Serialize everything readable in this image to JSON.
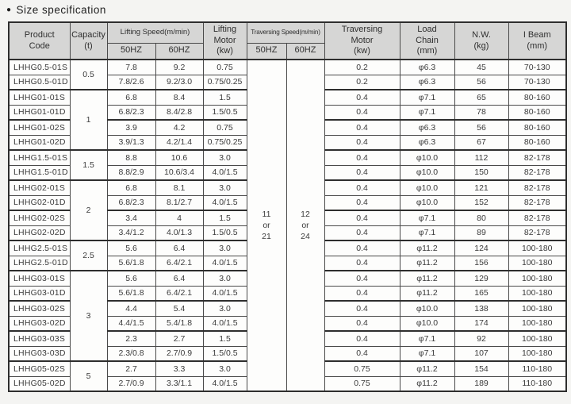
{
  "title": "Size specification",
  "bullet": "●",
  "table": {
    "headers": {
      "product_code": "Product\nCode",
      "capacity": "Capacity\n(t)",
      "lifting_speed": "Lifting Speed(m/min)",
      "lifting_speed_50hz": "50HZ",
      "lifting_speed_60hz": "60HZ",
      "lifting_motor": "Lifting\nMotor\n(kw)",
      "traversing_speed": "Traversing Speed(m/min)",
      "traversing_speed_50hz": "50HZ",
      "traversing_speed_60hz": "60HZ",
      "traversing_motor": "Traversing\nMotor\n(kw)",
      "load_chain": "Load\nChain\n(mm)",
      "nw": "N.W.\n(kg)",
      "i_beam": "I Beam\n(mm)"
    },
    "capacity_groups": [
      {
        "label": "0.5",
        "span": 2
      },
      {
        "label": "1",
        "span": 4
      },
      {
        "label": "1.5",
        "span": 2
      },
      {
        "label": "2",
        "span": 4
      },
      {
        "label": "2.5",
        "span": 2
      },
      {
        "label": "3",
        "span": 6
      },
      {
        "label": "5",
        "span": 2
      }
    ],
    "traversing_speed_values": {
      "hz50": "11\nor\n21",
      "hz60": "12\nor\n24"
    },
    "rows": [
      {
        "code": "LHHG0.5-01S",
        "lift_50hz": "7.8",
        "lift_60hz": "9.2",
        "lifting_motor_kw": "0.75",
        "traversing_motor_kw": "0.2",
        "load_chain_mm": "φ6.3",
        "nw_kg": "45",
        "i_beam_mm": "70-130"
      },
      {
        "code": "LHHG0.5-01D",
        "lift_50hz": "7.8/2.6",
        "lift_60hz": "9.2/3.0",
        "lifting_motor_kw": "0.75/0.25",
        "traversing_motor_kw": "0.2",
        "load_chain_mm": "φ6.3",
        "nw_kg": "56",
        "i_beam_mm": "70-130"
      },
      {
        "code": "LHHG01-01S",
        "lift_50hz": "6.8",
        "lift_60hz": "8.4",
        "lifting_motor_kw": "1.5",
        "traversing_motor_kw": "0.4",
        "load_chain_mm": "φ7.1",
        "nw_kg": "65",
        "i_beam_mm": "80-160"
      },
      {
        "code": "LHHG01-01D",
        "lift_50hz": "6.8/2.3",
        "lift_60hz": "8.4/2.8",
        "lifting_motor_kw": "1.5/0.5",
        "traversing_motor_kw": "0.4",
        "load_chain_mm": "φ7.1",
        "nw_kg": "78",
        "i_beam_mm": "80-160"
      },
      {
        "code": "LHHG01-02S",
        "lift_50hz": "3.9",
        "lift_60hz": "4.2",
        "lifting_motor_kw": "0.75",
        "traversing_motor_kw": "0.4",
        "load_chain_mm": "φ6.3",
        "nw_kg": "56",
        "i_beam_mm": "80-160"
      },
      {
        "code": "LHHG01-02D",
        "lift_50hz": "3.9/1.3",
        "lift_60hz": "4.2/1.4",
        "lifting_motor_kw": "0.75/0.25",
        "traversing_motor_kw": "0.4",
        "load_chain_mm": "φ6.3",
        "nw_kg": "67",
        "i_beam_mm": "80-160"
      },
      {
        "code": "LHHG1.5-01S",
        "lift_50hz": "8.8",
        "lift_60hz": "10.6",
        "lifting_motor_kw": "3.0",
        "traversing_motor_kw": "0.4",
        "load_chain_mm": "φ10.0",
        "nw_kg": "112",
        "i_beam_mm": "82-178"
      },
      {
        "code": "LHHG1.5-01D",
        "lift_50hz": "8.8/2.9",
        "lift_60hz": "10.6/3.4",
        "lifting_motor_kw": "4.0/1.5",
        "traversing_motor_kw": "0.4",
        "load_chain_mm": "φ10.0",
        "nw_kg": "150",
        "i_beam_mm": "82-178"
      },
      {
        "code": "LHHG02-01S",
        "lift_50hz": "6.8",
        "lift_60hz": "8.1",
        "lifting_motor_kw": "3.0",
        "traversing_motor_kw": "0.4",
        "load_chain_mm": "φ10.0",
        "nw_kg": "121",
        "i_beam_mm": "82-178"
      },
      {
        "code": "LHHG02-01D",
        "lift_50hz": "6.8/2.3",
        "lift_60hz": "8.1/2.7",
        "lifting_motor_kw": "4.0/1.5",
        "traversing_motor_kw": "0.4",
        "load_chain_mm": "φ10.0",
        "nw_kg": "152",
        "i_beam_mm": "82-178"
      },
      {
        "code": "LHHG02-02S",
        "lift_50hz": "3.4",
        "lift_60hz": "4",
        "lifting_motor_kw": "1.5",
        "traversing_motor_kw": "0.4",
        "load_chain_mm": "φ7.1",
        "nw_kg": "80",
        "i_beam_mm": "82-178"
      },
      {
        "code": "LHHG02-02D",
        "lift_50hz": "3.4/1.2",
        "lift_60hz": "4.0/1.3",
        "lifting_motor_kw": "1.5/0.5",
        "traversing_motor_kw": "0.4",
        "load_chain_mm": "φ7.1",
        "nw_kg": "89",
        "i_beam_mm": "82-178"
      },
      {
        "code": "LHHG2.5-01S",
        "lift_50hz": "5.6",
        "lift_60hz": "6.4",
        "lifting_motor_kw": "3.0",
        "traversing_motor_kw": "0.4",
        "load_chain_mm": "φ11.2",
        "nw_kg": "124",
        "i_beam_mm": "100-180"
      },
      {
        "code": "LHHG2.5-01D",
        "lift_50hz": "5.6/1.8",
        "lift_60hz": "6.4/2.1",
        "lifting_motor_kw": "4.0/1.5",
        "traversing_motor_kw": "0.4",
        "load_chain_mm": "φ11.2",
        "nw_kg": "156",
        "i_beam_mm": "100-180"
      },
      {
        "code": "LHHG03-01S",
        "lift_50hz": "5.6",
        "lift_60hz": "6.4",
        "lifting_motor_kw": "3.0",
        "traversing_motor_kw": "0.4",
        "load_chain_mm": "φ11.2",
        "nw_kg": "129",
        "i_beam_mm": "100-180"
      },
      {
        "code": "LHHG03-01D",
        "lift_50hz": "5.6/1.8",
        "lift_60hz": "6.4/2.1",
        "lifting_motor_kw": "4.0/1.5",
        "traversing_motor_kw": "0.4",
        "load_chain_mm": "φ11.2",
        "nw_kg": "165",
        "i_beam_mm": "100-180"
      },
      {
        "code": "LHHG03-02S",
        "lift_50hz": "4.4",
        "lift_60hz": "5.4",
        "lifting_motor_kw": "3.0",
        "traversing_motor_kw": "0.4",
        "load_chain_mm": "φ10.0",
        "nw_kg": "138",
        "i_beam_mm": "100-180"
      },
      {
        "code": "LHHG03-02D",
        "lift_50hz": "4.4/1.5",
        "lift_60hz": "5.4/1.8",
        "lifting_motor_kw": "4.0/1.5",
        "traversing_motor_kw": "0.4",
        "load_chain_mm": "φ10.0",
        "nw_kg": "174",
        "i_beam_mm": "100-180"
      },
      {
        "code": "LHHG03-03S",
        "lift_50hz": "2.3",
        "lift_60hz": "2.7",
        "lifting_motor_kw": "1.5",
        "traversing_motor_kw": "0.4",
        "load_chain_mm": "φ7.1",
        "nw_kg": "92",
        "i_beam_mm": "100-180"
      },
      {
        "code": "LHHG03-03D",
        "lift_50hz": "2.3/0.8",
        "lift_60hz": "2.7/0.9",
        "lifting_motor_kw": "1.5/0.5",
        "traversing_motor_kw": "0.4",
        "load_chain_mm": "φ7.1",
        "nw_kg": "107",
        "i_beam_mm": "100-180"
      },
      {
        "code": "LHHG05-02S",
        "lift_50hz": "2.7",
        "lift_60hz": "3.3",
        "lifting_motor_kw": "3.0",
        "traversing_motor_kw": "0.75",
        "load_chain_mm": "φ11.2",
        "nw_kg": "154",
        "i_beam_mm": "110-180"
      },
      {
        "code": "LHHG05-02D",
        "lift_50hz": "2.7/0.9",
        "lift_60hz": "3.3/1.1",
        "lifting_motor_kw": "4.0/1.5",
        "traversing_motor_kw": "0.75",
        "load_chain_mm": "φ11.2",
        "nw_kg": "189",
        "i_beam_mm": "110-180"
      }
    ]
  }
}
